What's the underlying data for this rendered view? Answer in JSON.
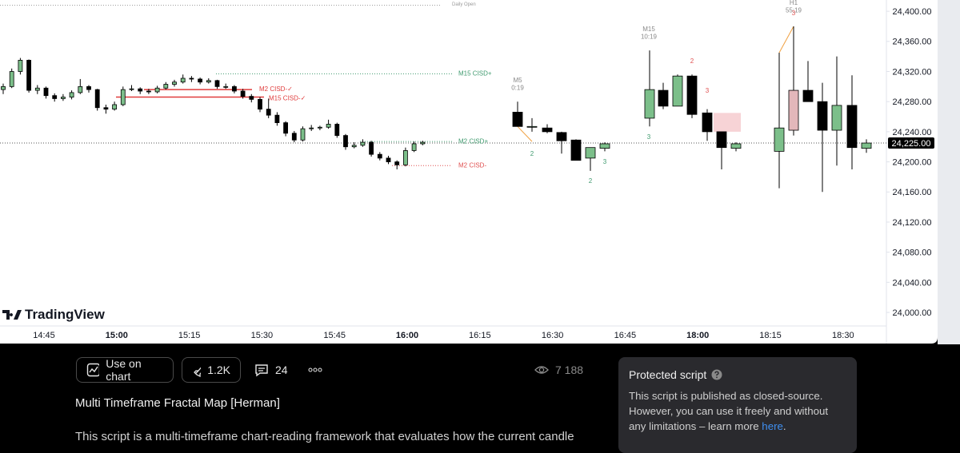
{
  "chart": {
    "logo": "TradingView",
    "ylim": [
      23982,
      24415
    ],
    "price_ticks": [
      {
        "value": 24400,
        "label": "24,400.00"
      },
      {
        "value": 24360,
        "label": "24,360.00"
      },
      {
        "value": 24320,
        "label": "24,320.00"
      },
      {
        "value": 24280,
        "label": "24,280.00"
      },
      {
        "value": 24240,
        "label": "24,240.00"
      },
      {
        "value": 24200,
        "label": "24,200.00"
      },
      {
        "value": 24160,
        "label": "24,160.00"
      },
      {
        "value": 24120,
        "label": "24,120.00"
      },
      {
        "value": 24080,
        "label": "24,080.00"
      },
      {
        "value": 24040,
        "label": "24,040.00"
      },
      {
        "value": 24000,
        "label": "24,000.00"
      }
    ],
    "last_price": {
      "value": 24225,
      "label": "24,225.00"
    },
    "time_ticks": [
      {
        "label": "14:45",
        "bold": false
      },
      {
        "label": "15:00",
        "bold": true
      },
      {
        "label": "15:15",
        "bold": false
      },
      {
        "label": "15:30",
        "bold": false
      },
      {
        "label": "15:45",
        "bold": false
      },
      {
        "label": "16:00",
        "bold": true
      },
      {
        "label": "16:15",
        "bold": false
      },
      {
        "label": "16:30",
        "bold": false
      },
      {
        "label": "16:45",
        "bold": false
      },
      {
        "label": "18:00",
        "bold": true
      },
      {
        "label": "18:15",
        "bold": false
      },
      {
        "label": "18:30",
        "bold": false
      }
    ],
    "bull_color": "#7cbf8a",
    "bear_color": "#000000",
    "levels": [
      {
        "label": "Daily Open",
        "price": 24408,
        "color": "#9a9a9a",
        "style": "dotted"
      },
      {
        "label": "M15 CISD+",
        "price": 24317,
        "color": "#3f9a6e",
        "style": "dotted"
      },
      {
        "label": "M2 CISD+",
        "price": 24227,
        "color": "#3f9a6e",
        "style": "dotted"
      },
      {
        "label": "M2 CISD-",
        "price": 24195,
        "color": "#e05050",
        "style": "dotted"
      },
      {
        "label": "M2 CISD-✓",
        "price": 24296,
        "color": "#e03c3c",
        "style": "solid"
      },
      {
        "label": "M15 CISD-✓",
        "price": 24286,
        "color": "#e03c3c",
        "style": "solid"
      }
    ],
    "m2_candles": [
      [
        24296,
        24304,
        24290,
        24300
      ],
      [
        24300,
        24324,
        24298,
        24320
      ],
      [
        24320,
        24338,
        24316,
        24335
      ],
      [
        24335,
        24336,
        24292,
        24295
      ],
      [
        24295,
        24302,
        24290,
        24298
      ],
      [
        24298,
        24300,
        24284,
        24288
      ],
      [
        24288,
        24291,
        24280,
        24284
      ],
      [
        24284,
        24290,
        24281,
        24286
      ],
      [
        24286,
        24295,
        24283,
        24292
      ],
      [
        24292,
        24310,
        24290,
        24300
      ],
      [
        24300,
        24302,
        24292,
        24296
      ],
      [
        24296,
        24297,
        24268,
        24272
      ],
      [
        24272,
        24276,
        24264,
        24270
      ],
      [
        24270,
        24280,
        24268,
        24276
      ],
      [
        24276,
        24300,
        24274,
        24296
      ],
      [
        24296,
        24302,
        24294,
        24297
      ],
      [
        24297,
        24299,
        24290,
        24294
      ],
      [
        24294,
        24297,
        24290,
        24293
      ],
      [
        24293,
        24301,
        24291,
        24298
      ],
      [
        24298,
        24306,
        24296,
        24303
      ],
      [
        24303,
        24309,
        24300,
        24306
      ],
      [
        24306,
        24316,
        24304,
        24311
      ],
      [
        24311,
        24314,
        24306,
        24310
      ],
      [
        24310,
        24312,
        24303,
        24306
      ],
      [
        24306,
        24311,
        24304,
        24308
      ],
      [
        24308,
        24309,
        24297,
        24300
      ],
      [
        24300,
        24304,
        24297,
        24300
      ],
      [
        24300,
        24302,
        24291,
        24294
      ],
      [
        24294,
        24297,
        24284,
        24287
      ],
      [
        24287,
        24290,
        24279,
        24283
      ],
      [
        24283,
        24286,
        24266,
        24270
      ],
      [
        24270,
        24284,
        24258,
        24262
      ],
      [
        24262,
        24266,
        24248,
        24252
      ],
      [
        24252,
        24254,
        24234,
        24238
      ],
      [
        24238,
        24241,
        24226,
        24229
      ],
      [
        24229,
        24247,
        24227,
        24244
      ],
      [
        24244,
        24249,
        24241,
        24245
      ],
      [
        24245,
        24248,
        24242,
        24246
      ],
      [
        24246,
        24256,
        24244,
        24250
      ],
      [
        24250,
        24252,
        24232,
        24235
      ],
      [
        24235,
        24237,
        24216,
        24220
      ],
      [
        24220,
        24226,
        24218,
        24222
      ],
      [
        24222,
        24230,
        24220,
        24226
      ],
      [
        24226,
        24228,
        24207,
        24210
      ],
      [
        24210,
        24213,
        24202,
        24205
      ],
      [
        24205,
        24208,
        24197,
        24200
      ],
      [
        24200,
        24202,
        24190,
        24196
      ],
      [
        24196,
        24219,
        24194,
        24215
      ],
      [
        24215,
        24227,
        24213,
        24224
      ],
      [
        24224,
        24228,
        24222,
        24226
      ]
    ],
    "groups": [
      {
        "name": "M5",
        "timer": "0:19",
        "candles": [
          [
            24266,
            24280,
            24247,
            24247
          ],
          [
            24247,
            24258,
            24240,
            24247
          ],
          [
            24245,
            24250,
            24238,
            24240
          ],
          [
            24239,
            24240,
            24211,
            24228
          ],
          [
            24229,
            24230,
            24202,
            24202
          ],
          [
            24205,
            24219,
            24188,
            24219
          ],
          [
            24218,
            24226,
            24214,
            24224
          ]
        ],
        "counts": [
          {
            "text": "2",
            "color": "#3f9a6e"
          },
          {
            "text": "2",
            "color": "#3f9a6e"
          },
          {
            "text": "3",
            "color": "#3f9a6e"
          }
        ]
      },
      {
        "name": "M15",
        "timer": "10:19",
        "candles": [
          [
            24258,
            24348,
            24247,
            24296
          ],
          [
            24295,
            24305,
            24270,
            24274
          ],
          [
            24274,
            24316,
            24274,
            24314
          ],
          [
            24314,
            24316,
            24258,
            24263
          ],
          [
            24265,
            24270,
            24228,
            24240
          ],
          [
            24240,
            24240,
            24190,
            24219
          ],
          [
            24218,
            24226,
            24214,
            24224
          ]
        ],
        "fvg": {
          "top": 24265,
          "bottom": 24240,
          "color": "#f7d3d6"
        },
        "counts": [
          {
            "text": "3",
            "color": "#3f9a6e"
          },
          {
            "text": "2",
            "color": "#e05050"
          },
          {
            "text": "3",
            "color": "#e05050"
          }
        ]
      },
      {
        "name": "H1",
        "timer": "55:19",
        "candles": [
          [
            24214,
            24345,
            24165,
            24245
          ],
          [
            24295,
            24380,
            24235,
            24242
          ],
          [
            24295,
            24334,
            24280,
            24280
          ],
          [
            24280,
            24305,
            24160,
            24242
          ],
          [
            24242,
            24340,
            24195,
            24275
          ],
          [
            24275,
            24315,
            24190,
            24219
          ],
          [
            24218,
            24230,
            24212,
            24225
          ]
        ],
        "highlight": {
          "index": 1,
          "color": "#e3b7ba"
        },
        "counts": [
          {
            "text": "3",
            "color": "#e05050"
          }
        ]
      }
    ]
  },
  "toolbar": {
    "use_on_chart": "Use on chart",
    "boosts": "1.2K",
    "comments": "24",
    "views": "7 188"
  },
  "script": {
    "title": "Multi Timeframe Fractal Map [Herman]",
    "description": "This script is a multi-timeframe chart-reading framework that evaluates how the current candle"
  },
  "protected": {
    "title": "Protected script",
    "text": "This script is published as closed-source. However, you can use it freely and without any limitations – learn more ",
    "link": "here",
    "end": "."
  }
}
